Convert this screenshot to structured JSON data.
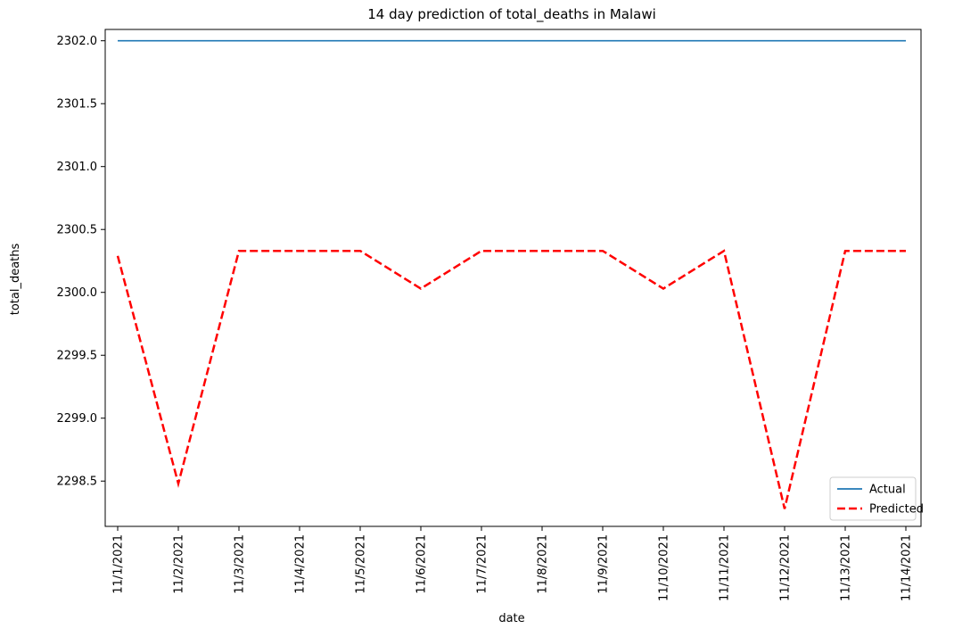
{
  "chart_data": {
    "type": "line",
    "title": "14 day prediction of total_deaths in Malawi",
    "xlabel": "date",
    "ylabel": "total_deaths",
    "categories": [
      "11/1/2021",
      "11/2/2021",
      "11/3/2021",
      "11/4/2021",
      "11/5/2021",
      "11/6/2021",
      "11/7/2021",
      "11/8/2021",
      "11/9/2021",
      "11/10/2021",
      "11/11/2021",
      "11/12/2021",
      "11/13/2021",
      "11/14/2021"
    ],
    "series": [
      {
        "name": "Actual",
        "color": "#1f77b4",
        "style": "solid",
        "values": [
          2302,
          2302,
          2302,
          2302,
          2302,
          2302,
          2302,
          2302,
          2302,
          2302,
          2302,
          2302,
          2302,
          2302
        ]
      },
      {
        "name": "Predicted",
        "color": "#ff0000",
        "style": "dashed",
        "values": [
          2300.29,
          2298.48,
          2300.33,
          2300.33,
          2300.33,
          2300.03,
          2300.33,
          2300.33,
          2300.33,
          2300.03,
          2300.33,
          2298.28,
          2300.33,
          2300.33
        ]
      }
    ],
    "ylim": [
      2298.14,
      2302.09
    ],
    "yticks": [
      "2298.5",
      "2299.0",
      "2299.5",
      "2300.0",
      "2300.5",
      "2301.0",
      "2301.5",
      "2302.0"
    ],
    "grid": false,
    "legend_position": "bottom-right"
  }
}
